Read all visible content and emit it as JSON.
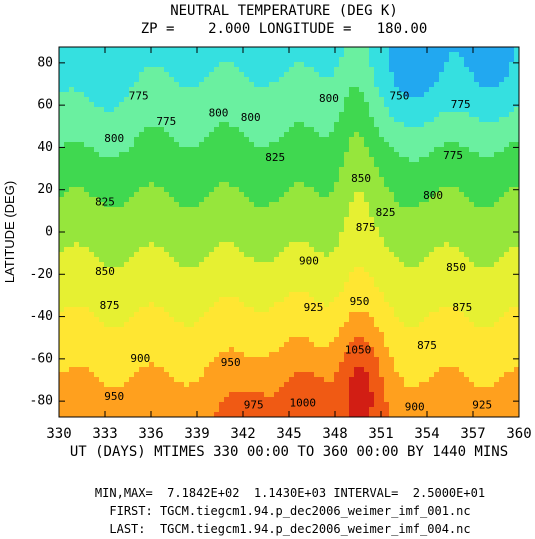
{
  "chart_data": {
    "type": "heatmap",
    "title": "NEUTRAL TEMPERATURE (DEG K)",
    "subtitle": "ZP =    2.000 LONGITUDE =   180.00",
    "xlabel": "UT (DAYS) MTIMES 330 00:00 TO 360 00:00 BY 1440 MINS",
    "ylabel": "LATITUDE (DEG)",
    "xlim": [
      330,
      360
    ],
    "ylim": [
      -87.5,
      87.5
    ],
    "x_ticks": [
      "330",
      "333",
      "336",
      "339",
      "342",
      "345",
      "348",
      "351",
      "354",
      "357",
      "360"
    ],
    "y_ticks": [
      "80",
      "60",
      "40",
      "20",
      "0",
      "-20",
      "-40",
      "-60",
      "-80"
    ],
    "grid": false,
    "color_scale": {
      "stops": [
        "#1f4fe0",
        "#22a8f0",
        "#35e0e0",
        "#6af0a0",
        "#40d850",
        "#96e63c",
        "#e6f032",
        "#ffe632",
        "#ffa01e",
        "#f05a14",
        "#d21e14",
        "#ff32ff"
      ]
    },
    "contour_labels": [
      {
        "text": "775",
        "x": 335.2,
        "y": 64
      },
      {
        "text": "775",
        "x": 337.0,
        "y": 52
      },
      {
        "text": "800",
        "x": 333.6,
        "y": 44
      },
      {
        "text": "800",
        "x": 340.4,
        "y": 56
      },
      {
        "text": "800",
        "x": 342.5,
        "y": 54
      },
      {
        "text": "800",
        "x": 347.6,
        "y": 63
      },
      {
        "text": "750",
        "x": 352.2,
        "y": 64
      },
      {
        "text": "775",
        "x": 356.2,
        "y": 60
      },
      {
        "text": "775",
        "x": 355.7,
        "y": 36
      },
      {
        "text": "800",
        "x": 354.4,
        "y": 17
      },
      {
        "text": "825",
        "x": 344.1,
        "y": 35
      },
      {
        "text": "850",
        "x": 349.7,
        "y": 25
      },
      {
        "text": "825",
        "x": 351.3,
        "y": 9
      },
      {
        "text": "825",
        "x": 333.0,
        "y": 14
      },
      {
        "text": "875",
        "x": 350.0,
        "y": 2
      },
      {
        "text": "850",
        "x": 333.0,
        "y": -19
      },
      {
        "text": "900",
        "x": 346.3,
        "y": -14
      },
      {
        "text": "850",
        "x": 355.9,
        "y": -17
      },
      {
        "text": "875",
        "x": 333.3,
        "y": -35
      },
      {
        "text": "875",
        "x": 356.3,
        "y": -36
      },
      {
        "text": "925",
        "x": 346.6,
        "y": -36
      },
      {
        "text": "950",
        "x": 349.6,
        "y": -33
      },
      {
        "text": "875",
        "x": 354.0,
        "y": -54
      },
      {
        "text": "900",
        "x": 335.3,
        "y": -60
      },
      {
        "text": "1050",
        "x": 349.5,
        "y": -56
      },
      {
        "text": "950",
        "x": 341.2,
        "y": -62
      },
      {
        "text": "950",
        "x": 333.6,
        "y": -78
      },
      {
        "text": "975",
        "x": 342.7,
        "y": -82
      },
      {
        "text": "1000",
        "x": 345.9,
        "y": -81
      },
      {
        "text": "900",
        "x": 353.2,
        "y": -83
      },
      {
        "text": "925",
        "x": 357.6,
        "y": -82
      }
    ]
  },
  "footer": {
    "minmax": "MIN,MAX=  7.1842E+02  1.1430E+03 INTERVAL=  2.5000E+01",
    "first": "FIRST: TGCM.tiegcm1.94.p_dec2006_weimer_imf_001.nc",
    "last": "LAST:  TGCM.tiegcm1.94.p_dec2006_weimer_imf_004.nc"
  }
}
